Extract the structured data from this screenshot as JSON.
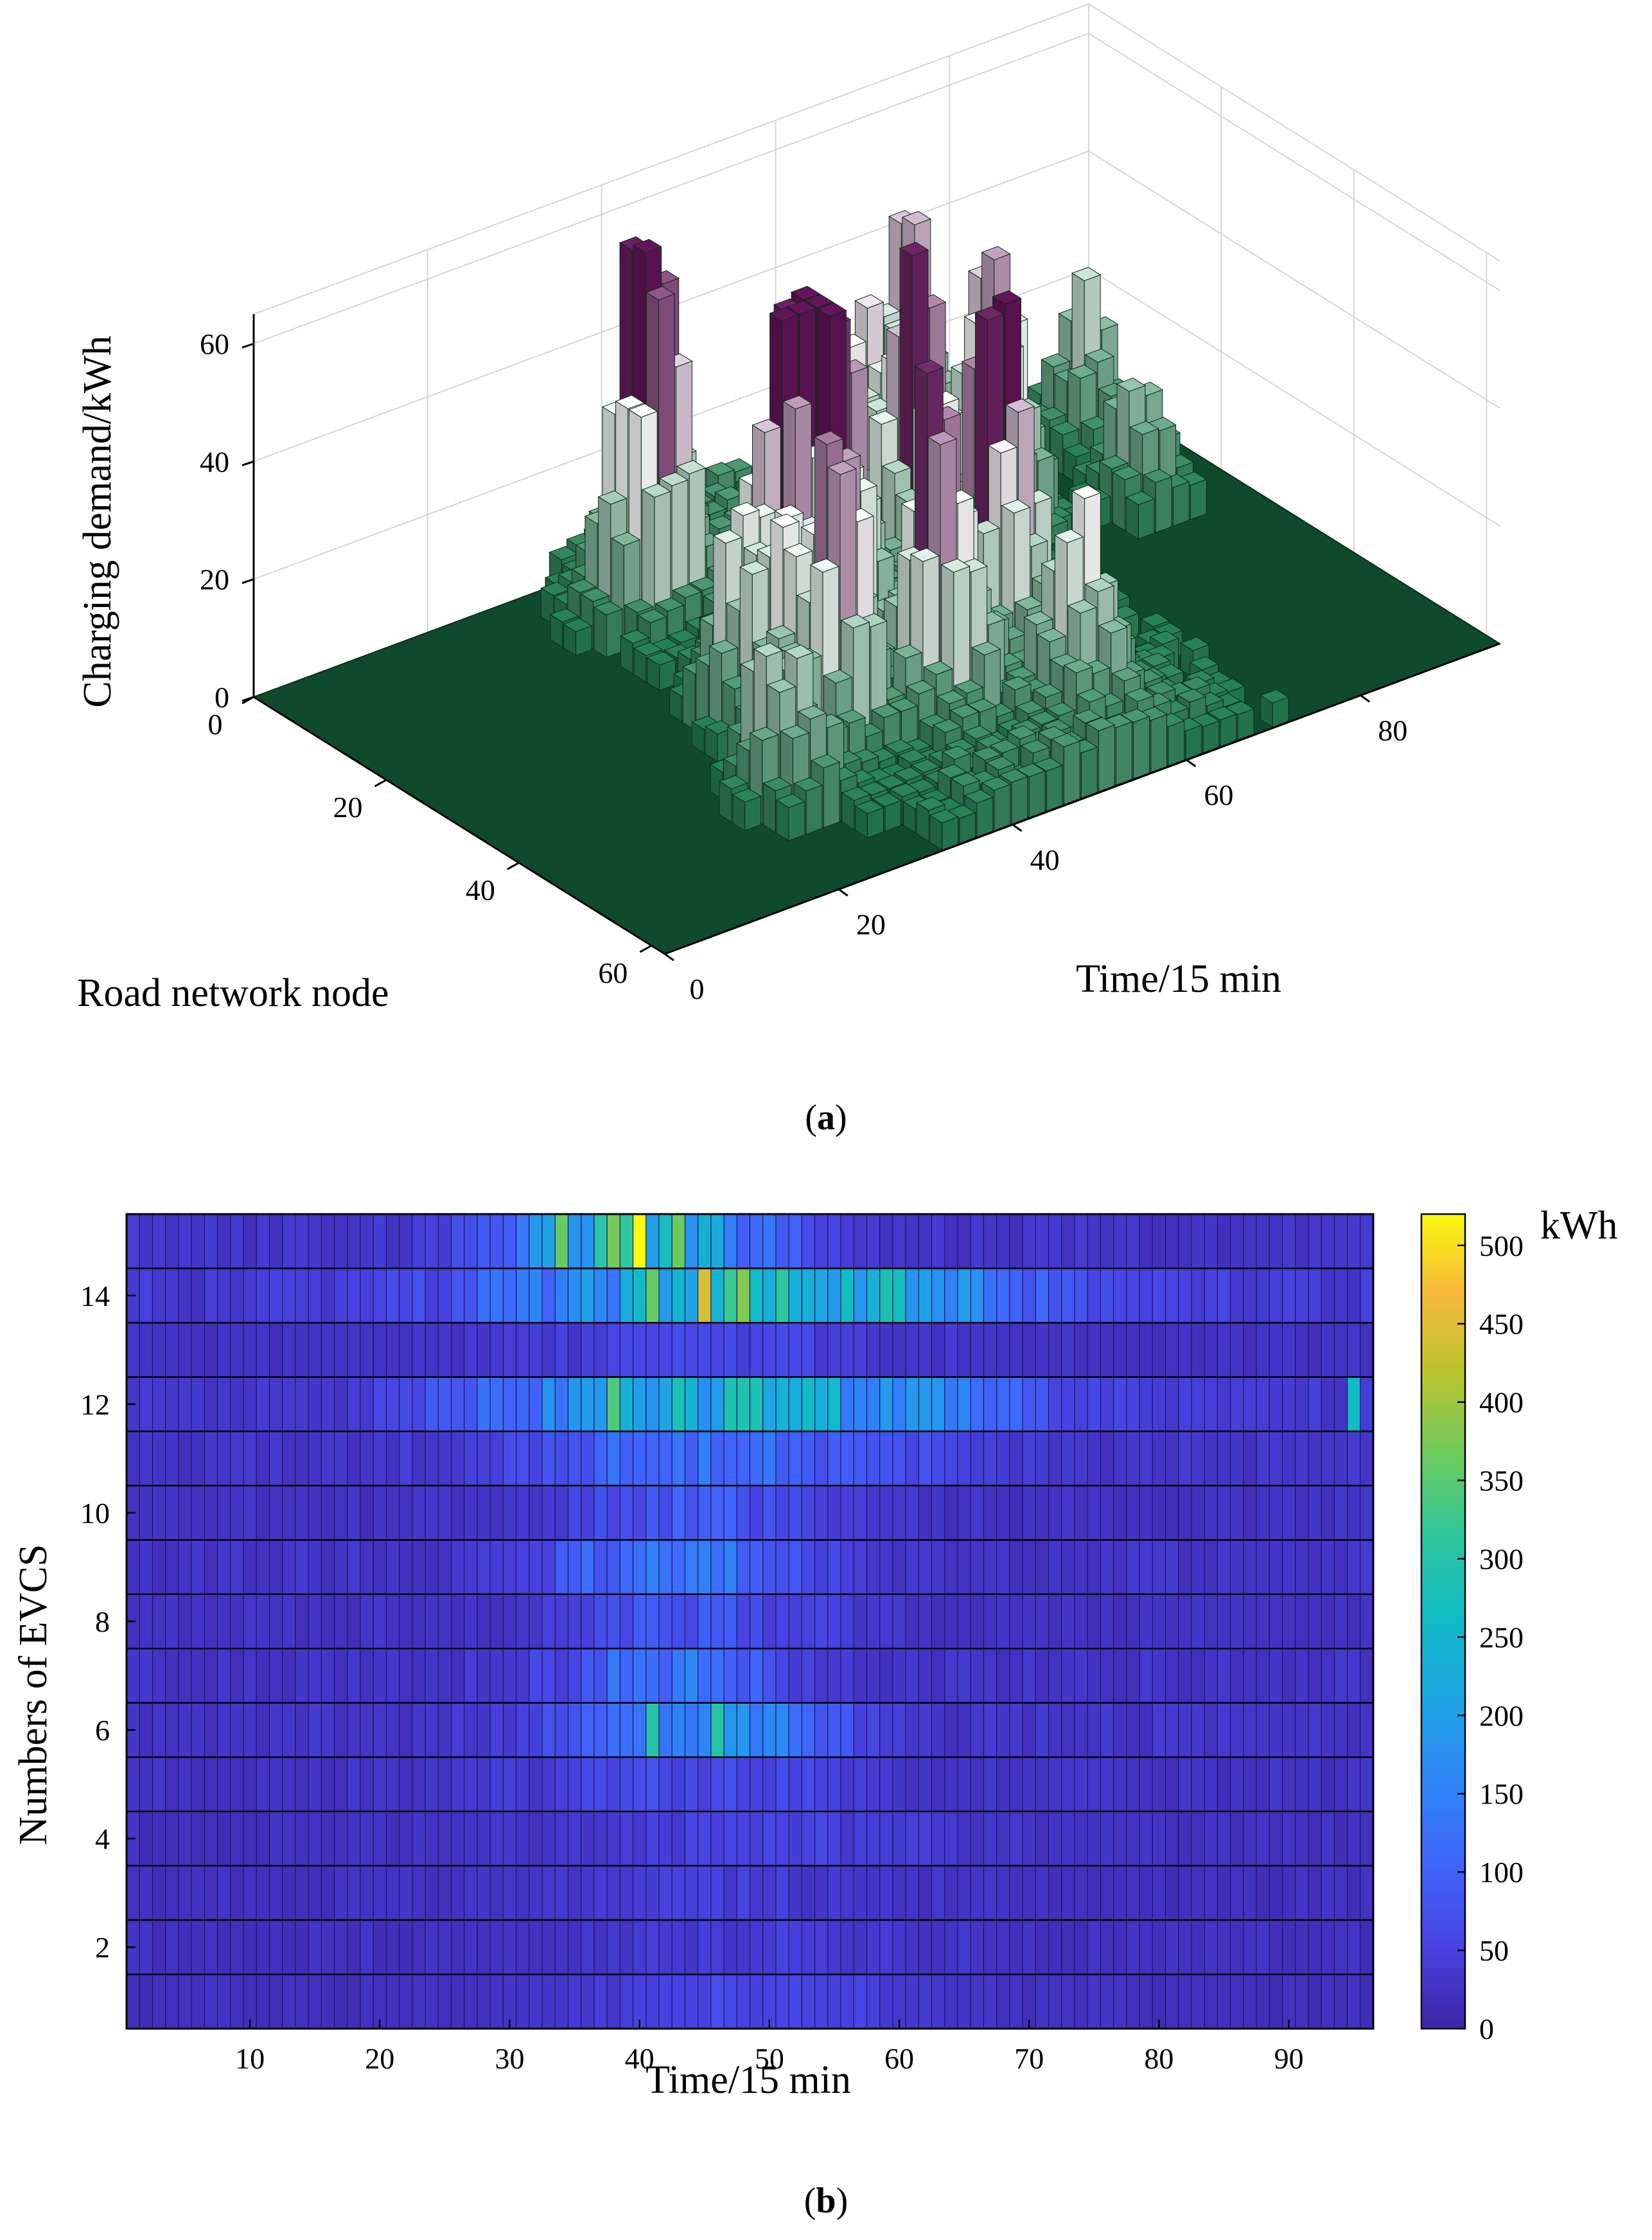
{
  "figure": {
    "caption_a": {
      "open": "(",
      "letter": "a",
      "close": ")"
    },
    "caption_b": {
      "open": "(",
      "letter": "b",
      "close": ")"
    }
  },
  "chart_data": [
    {
      "id": "a",
      "type": "bar3d",
      "title": "",
      "zlabel": "Charging demand/kWh",
      "ylabel": "Road network node",
      "xlabel": "Time/15 min",
      "z_ticks": [
        "0",
        "20",
        "40",
        "60"
      ],
      "node_ticks": [
        "0",
        "20",
        "40",
        "60"
      ],
      "time_ticks": [
        "0",
        "20",
        "40",
        "60",
        "80"
      ],
      "zlim": [
        0,
        65
      ],
      "node_range": [
        0,
        62
      ],
      "time_range": [
        0,
        96
      ],
      "colormap": {
        "low": "#0a6b3a",
        "mid": "#ffffff",
        "high": "#5a0a50"
      },
      "floor_color": "#0f4a2c",
      "peaks": [
        {
          "node": 10,
          "time": 36,
          "value": 62
        },
        {
          "node": 28,
          "time": 39,
          "value": 58
        },
        {
          "node": 40,
          "time": 34,
          "value": 50
        },
        {
          "node": 42,
          "time": 45,
          "value": 49
        },
        {
          "node": 38,
          "time": 55,
          "value": 52
        },
        {
          "node": 24,
          "time": 57,
          "value": 48
        },
        {
          "node": 18,
          "time": 70,
          "value": 45
        },
        {
          "node": 28,
          "time": 44,
          "value": 47
        },
        {
          "node": 32,
          "time": 32,
          "value": 40
        },
        {
          "node": 14,
          "time": 60,
          "value": 40
        },
        {
          "node": 5,
          "time": 70,
          "value": 38
        },
        {
          "node": 8,
          "time": 88,
          "value": 25
        },
        {
          "node": 50,
          "time": 55,
          "value": 28
        },
        {
          "node": 45,
          "time": 25,
          "value": 30
        },
        {
          "node": 20,
          "time": 85,
          "value": 22
        }
      ]
    },
    {
      "id": "b",
      "type": "heatmap",
      "title": "",
      "xlabel": "Time/15 min",
      "ylabel": "Numbers of EVCS",
      "x_ticks": [
        "10",
        "20",
        "30",
        "40",
        "50",
        "60",
        "70",
        "80",
        "90"
      ],
      "y_ticks": [
        "2",
        "4",
        "6",
        "8",
        "10",
        "12",
        "14"
      ],
      "x_range": [
        1,
        96
      ],
      "y_range": [
        1,
        15
      ],
      "colorbar": {
        "unit": "kWh",
        "ticks": [
          "0",
          "50",
          "100",
          "150",
          "200",
          "250",
          "300",
          "350",
          "400",
          "450",
          "500"
        ],
        "range": [
          0,
          520
        ],
        "colormap": "parula"
      },
      "station_profiles": {
        "1": {
          "base": 20,
          "amp": 40,
          "center": 48,
          "width": 14
        },
        "2": {
          "base": 22,
          "amp": 20,
          "center": 50,
          "width": 14
        },
        "3": {
          "base": 22,
          "amp": 25,
          "center": 45,
          "width": 14
        },
        "4": {
          "base": 22,
          "amp": 30,
          "center": 48,
          "width": 16
        },
        "5": {
          "base": 25,
          "amp": 40,
          "center": 45,
          "width": 14
        },
        "6": {
          "base": 30,
          "amp": 180,
          "center": 45,
          "width": 9
        },
        "7": {
          "base": 28,
          "amp": 110,
          "center": 43,
          "width": 9
        },
        "8": {
          "base": 25,
          "amp": 60,
          "center": 44,
          "width": 10
        },
        "9": {
          "base": 28,
          "amp": 110,
          "center": 43,
          "width": 10
        },
        "10": {
          "base": 25,
          "amp": 70,
          "center": 45,
          "width": 10
        },
        "11": {
          "base": 30,
          "amp": 110,
          "center": 47,
          "width": 14
        },
        "12": {
          "base": 35,
          "amp": 230,
          "center": 48,
          "width": 18
        },
        "13": {
          "base": 25,
          "amp": 35,
          "center": 45,
          "width": 14
        },
        "14": {
          "base": 40,
          "amp": 260,
          "center": 50,
          "width": 18
        },
        "15": {
          "base": 30,
          "amp": 300,
          "center": 40,
          "width": 9
        }
      },
      "highlights": [
        {
          "station": 15,
          "time": 40,
          "value": 520
        },
        {
          "station": 15,
          "time": 38,
          "value": 370
        },
        {
          "station": 15,
          "time": 34,
          "value": 360
        },
        {
          "station": 14,
          "time": 45,
          "value": 440
        },
        {
          "station": 14,
          "time": 41,
          "value": 360
        },
        {
          "station": 12,
          "time": 38,
          "value": 340
        },
        {
          "station": 12,
          "time": 95,
          "value": 260
        },
        {
          "station": 6,
          "time": 41,
          "value": 300
        },
        {
          "station": 6,
          "time": 46,
          "value": 300
        }
      ]
    }
  ]
}
